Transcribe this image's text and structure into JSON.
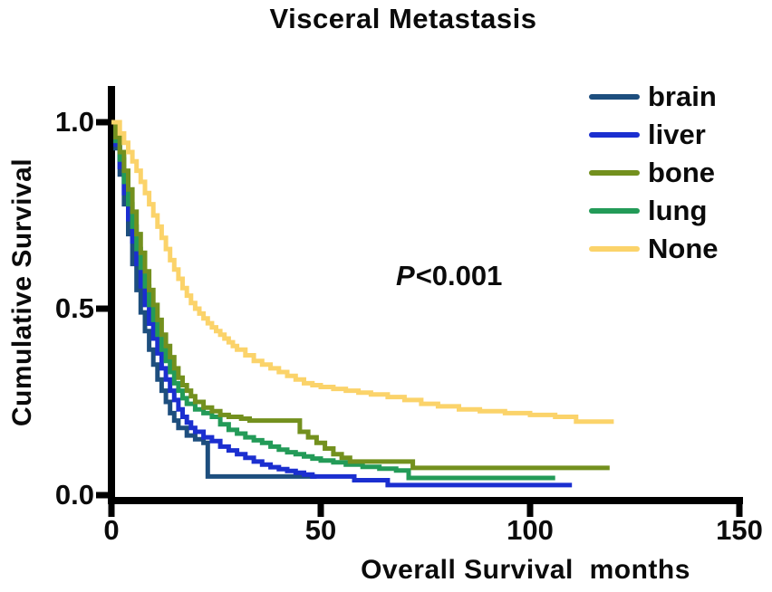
{
  "title": "Visceral Metastasis",
  "annotation": {
    "p": "P",
    "value": "<0.001"
  },
  "colors": {
    "axis": "#000000",
    "text": "#0b0b0b",
    "background": "#ffffff"
  },
  "chart_data": {
    "type": "line",
    "subtype": "kaplan_meier_step",
    "title": "Visceral Metastasis",
    "xlabel": "Overall Survival  months",
    "ylabel": "Cumulative Survival",
    "xlim": [
      0,
      150
    ],
    "ylim": [
      0,
      1.0
    ],
    "x_ticks": [
      0,
      50,
      100,
      150
    ],
    "y_ticks": [
      1.0,
      0.5,
      0.0
    ],
    "x_tick_labels": [
      "0",
      "50",
      "100",
      "150"
    ],
    "y_tick_labels": [
      "1.0",
      "0.5",
      "0.0"
    ],
    "grid": false,
    "legend_position": "top-right",
    "annotation": "P<0.001",
    "draw_order": [
      "brain",
      "liver",
      "lung",
      "bone",
      "None"
    ],
    "series": [
      {
        "name": "brain",
        "color": "#1d4e7e",
        "points": [
          [
            0,
            1.0
          ],
          [
            1,
            0.93
          ],
          [
            2,
            0.86
          ],
          [
            3,
            0.78
          ],
          [
            4,
            0.7
          ],
          [
            5,
            0.62
          ],
          [
            6,
            0.55
          ],
          [
            7,
            0.49
          ],
          [
            8,
            0.44
          ],
          [
            9,
            0.39
          ],
          [
            10,
            0.35
          ],
          [
            11,
            0.31
          ],
          [
            12,
            0.28
          ],
          [
            13,
            0.25
          ],
          [
            14,
            0.22
          ],
          [
            15,
            0.2
          ],
          [
            16,
            0.18
          ],
          [
            18,
            0.16
          ],
          [
            20,
            0.15
          ],
          [
            22,
            0.14
          ],
          [
            23,
            0.05
          ],
          [
            49,
            0.05
          ]
        ]
      },
      {
        "name": "liver",
        "color": "#1b2fd0",
        "points": [
          [
            0,
            1.0
          ],
          [
            1,
            0.94
          ],
          [
            2,
            0.88
          ],
          [
            3,
            0.81
          ],
          [
            4,
            0.74
          ],
          [
            5,
            0.68
          ],
          [
            6,
            0.62
          ],
          [
            7,
            0.56
          ],
          [
            8,
            0.51
          ],
          [
            9,
            0.46
          ],
          [
            10,
            0.42
          ],
          [
            11,
            0.38
          ],
          [
            12,
            0.34
          ],
          [
            13,
            0.31
          ],
          [
            14,
            0.28
          ],
          [
            15,
            0.255
          ],
          [
            16,
            0.23
          ],
          [
            17,
            0.21
          ],
          [
            18,
            0.195
          ],
          [
            19,
            0.18
          ],
          [
            20,
            0.17
          ],
          [
            22,
            0.155
          ],
          [
            24,
            0.145
          ],
          [
            26,
            0.13
          ],
          [
            28,
            0.12
          ],
          [
            30,
            0.11
          ],
          [
            32,
            0.1
          ],
          [
            34,
            0.09
          ],
          [
            36,
            0.082
          ],
          [
            38,
            0.075
          ],
          [
            40,
            0.07
          ],
          [
            42,
            0.065
          ],
          [
            44,
            0.06
          ],
          [
            46,
            0.055
          ],
          [
            48,
            0.05
          ],
          [
            58,
            0.04
          ],
          [
            66,
            0.027
          ],
          [
            110,
            0.027
          ]
        ]
      },
      {
        "name": "bone",
        "color": "#73901e",
        "points": [
          [
            0,
            1.0
          ],
          [
            1,
            0.96
          ],
          [
            2,
            0.92
          ],
          [
            3,
            0.87
          ],
          [
            4,
            0.82
          ],
          [
            5,
            0.76
          ],
          [
            6,
            0.7
          ],
          [
            7,
            0.65
          ],
          [
            8,
            0.6
          ],
          [
            9,
            0.55
          ],
          [
            10,
            0.51
          ],
          [
            11,
            0.47
          ],
          [
            12,
            0.43
          ],
          [
            13,
            0.4
          ],
          [
            14,
            0.37
          ],
          [
            15,
            0.34
          ],
          [
            16,
            0.315
          ],
          [
            17,
            0.295
          ],
          [
            18,
            0.28
          ],
          [
            19,
            0.265
          ],
          [
            20,
            0.25
          ],
          [
            22,
            0.235
          ],
          [
            24,
            0.225
          ],
          [
            26,
            0.215
          ],
          [
            28,
            0.21
          ],
          [
            31,
            0.205
          ],
          [
            33,
            0.2
          ],
          [
            45,
            0.17
          ],
          [
            47,
            0.155
          ],
          [
            49,
            0.14
          ],
          [
            51,
            0.125
          ],
          [
            53,
            0.11
          ],
          [
            55,
            0.1
          ],
          [
            57,
            0.09
          ],
          [
            72,
            0.073
          ],
          [
            119,
            0.073
          ]
        ]
      },
      {
        "name": "lung",
        "color": "#239b58",
        "points": [
          [
            0,
            1.0
          ],
          [
            1,
            0.95
          ],
          [
            2,
            0.9
          ],
          [
            3,
            0.84
          ],
          [
            4,
            0.78
          ],
          [
            5,
            0.72
          ],
          [
            6,
            0.66
          ],
          [
            7,
            0.61
          ],
          [
            8,
            0.56
          ],
          [
            9,
            0.51
          ],
          [
            10,
            0.47
          ],
          [
            11,
            0.43
          ],
          [
            12,
            0.39
          ],
          [
            13,
            0.36
          ],
          [
            14,
            0.33
          ],
          [
            15,
            0.3
          ],
          [
            16,
            0.28
          ],
          [
            17,
            0.26
          ],
          [
            18,
            0.245
          ],
          [
            20,
            0.23
          ],
          [
            22,
            0.22
          ],
          [
            24,
            0.21
          ],
          [
            26,
            0.19
          ],
          [
            28,
            0.175
          ],
          [
            30,
            0.165
          ],
          [
            32,
            0.155
          ],
          [
            34,
            0.147
          ],
          [
            36,
            0.14
          ],
          [
            38,
            0.13
          ],
          [
            40,
            0.122
          ],
          [
            42,
            0.115
          ],
          [
            44,
            0.11
          ],
          [
            46,
            0.104
          ],
          [
            48,
            0.098
          ],
          [
            50,
            0.093
          ],
          [
            53,
            0.088
          ],
          [
            56,
            0.082
          ],
          [
            60,
            0.076
          ],
          [
            64,
            0.071
          ],
          [
            68,
            0.066
          ],
          [
            71,
            0.046
          ],
          [
            106,
            0.046
          ]
        ]
      },
      {
        "name": "None",
        "color": "#fbd36a",
        "points": [
          [
            0,
            1.0
          ],
          [
            2,
            0.97
          ],
          [
            3,
            0.945
          ],
          [
            4,
            0.92
          ],
          [
            5,
            0.895
          ],
          [
            6,
            0.87
          ],
          [
            7,
            0.84
          ],
          [
            8,
            0.81
          ],
          [
            9,
            0.78
          ],
          [
            10,
            0.75
          ],
          [
            11,
            0.72
          ],
          [
            12,
            0.69
          ],
          [
            13,
            0.66
          ],
          [
            14,
            0.63
          ],
          [
            15,
            0.605
          ],
          [
            16,
            0.58
          ],
          [
            17,
            0.555
          ],
          [
            18,
            0.535
          ],
          [
            19,
            0.515
          ],
          [
            20,
            0.5
          ],
          [
            21,
            0.487
          ],
          [
            22,
            0.474
          ],
          [
            23,
            0.461
          ],
          [
            24,
            0.45
          ],
          [
            25,
            0.44
          ],
          [
            26,
            0.43
          ],
          [
            27,
            0.42
          ],
          [
            28,
            0.41
          ],
          [
            29,
            0.4
          ],
          [
            30,
            0.39
          ],
          [
            32,
            0.375
          ],
          [
            34,
            0.36
          ],
          [
            36,
            0.35
          ],
          [
            38,
            0.34
          ],
          [
            40,
            0.33
          ],
          [
            42,
            0.32
          ],
          [
            44,
            0.31
          ],
          [
            46,
            0.3
          ],
          [
            48,
            0.295
          ],
          [
            50,
            0.29
          ],
          [
            53,
            0.285
          ],
          [
            56,
            0.28
          ],
          [
            59,
            0.275
          ],
          [
            62,
            0.27
          ],
          [
            66,
            0.263
          ],
          [
            70,
            0.255
          ],
          [
            74,
            0.245
          ],
          [
            78,
            0.238
          ],
          [
            83,
            0.23
          ],
          [
            88,
            0.225
          ],
          [
            94,
            0.22
          ],
          [
            100,
            0.215
          ],
          [
            106,
            0.21
          ],
          [
            111,
            0.197
          ],
          [
            120,
            0.197
          ]
        ]
      }
    ]
  }
}
